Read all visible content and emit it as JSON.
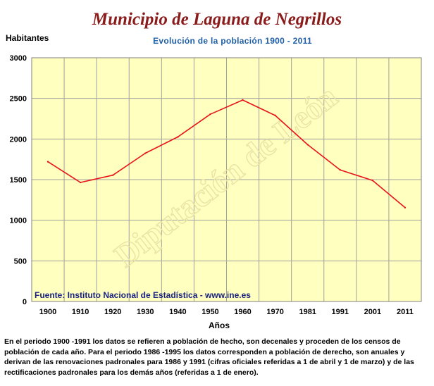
{
  "header": {
    "title": "Municipio de Laguna de Negrillos",
    "subtitle": "Evolución de la población 1900 - 2011"
  },
  "chart_data": {
    "type": "line",
    "ylabel": "Habitantes",
    "xlabel": "Años",
    "categories": [
      "1900",
      "1910",
      "1920",
      "1930",
      "1940",
      "1950",
      "1960",
      "1970",
      "1981",
      "1991",
      "2001",
      "2011"
    ],
    "series": [
      {
        "values": [
          1720,
          1465,
          1555,
          1825,
          2025,
          2305,
          2480,
          2290,
          1930,
          1620,
          1490,
          1155
        ]
      }
    ],
    "ylim": [
      0,
      3000
    ],
    "yticks": [
      "0",
      "500",
      "1000",
      "1500",
      "2000",
      "2500",
      "3000"
    ],
    "grid": true,
    "source_note": "Fuente: Instituto Nacional de Estadística - www.ine.es",
    "watermark": "Diputación de León",
    "colors": {
      "plot_bg": "#ffffc0",
      "line": "#e8141c",
      "grid": "#a0a0a0",
      "source_text": "#1a237e"
    }
  },
  "footnote": "En el periodo 1900 -1991 los datos se refieren a población de hecho, son decenales y proceden de los censos de población de cada año. Para el periodo 1986 -1995 los datos corresponden a población de derecho, son anuales y derivan de las renovaciones padronales para 1986 y 1991 (cifras oficiales referidas a 1 de abril y 1 de marzo) y de las rectificaciones padronales para los demás años (referidas a 1 de enero)."
}
